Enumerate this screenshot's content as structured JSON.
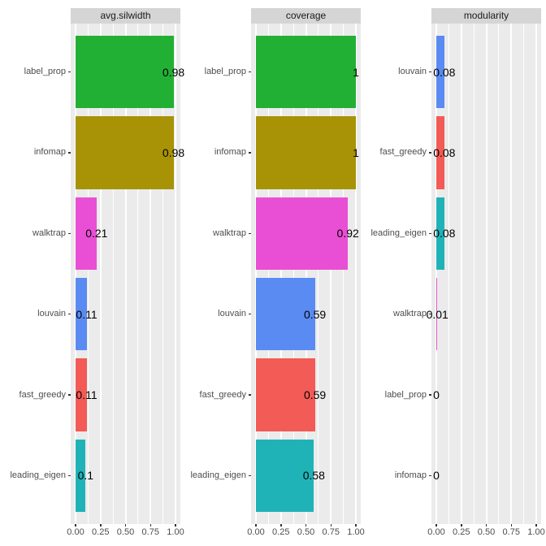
{
  "chart_data": {
    "type": "bar",
    "orientation": "horizontal",
    "title": "",
    "xlabel": "",
    "ylabel": "",
    "xlim": [
      0,
      1
    ],
    "x_tick_values": [
      0,
      0.25,
      0.5,
      0.75,
      1.0
    ],
    "x_tick_labels": [
      "0.00",
      "0.25",
      "0.50",
      "0.75",
      "1.00"
    ],
    "x_minor_tick_values": [
      0.125,
      0.375,
      0.625,
      0.875
    ],
    "grid": "on",
    "legend": "none",
    "facets": [
      {
        "title": "avg.silwidth",
        "categories": [
          "label_prop",
          "infomap",
          "walktrap",
          "louvain",
          "fast_greedy",
          "leading_eigen"
        ],
        "values": [
          0.98,
          0.98,
          0.21,
          0.11,
          0.11,
          0.1
        ],
        "value_labels": [
          "0.98",
          "0.98",
          "0.21",
          "0.11",
          "0.11",
          "0.1"
        ]
      },
      {
        "title": "coverage",
        "categories": [
          "label_prop",
          "infomap",
          "walktrap",
          "louvain",
          "fast_greedy",
          "leading_eigen"
        ],
        "values": [
          1,
          1,
          0.92,
          0.59,
          0.59,
          0.58
        ],
        "value_labels": [
          "1",
          "1",
          "0.92",
          "0.59",
          "0.59",
          "0.58"
        ]
      },
      {
        "title": "modularity",
        "categories": [
          "louvain",
          "fast_greedy",
          "leading_eigen",
          "walktrap",
          "label_prop",
          "infomap"
        ],
        "values": [
          0.08,
          0.08,
          0.08,
          0.01,
          0,
          0
        ],
        "value_labels": [
          "0.08",
          "0.08",
          "0.08",
          "0.01",
          "0",
          "0"
        ]
      }
    ],
    "series_colors": {
      "label_prop": "#22B034",
      "infomap": "#A89205",
      "walktrap": "#E94FD4",
      "louvain": "#5A8BF2",
      "fast_greedy": "#F25B56",
      "leading_eigen": "#1FB3B7"
    },
    "theme": {
      "panel_bg": "#EBEBEB",
      "strip_bg": "#D5D5D5",
      "grid_color": "#FFFFFF",
      "axis_text_color": "#4D4D4D",
      "tick_color": "#333333",
      "value_label_color": "#000000",
      "background": "#FFFFFF"
    }
  }
}
